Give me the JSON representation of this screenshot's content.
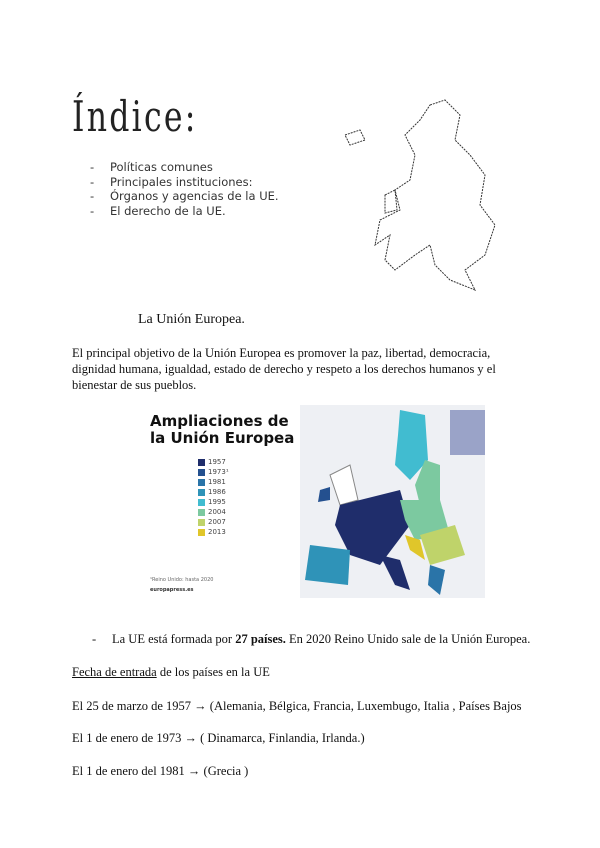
{
  "index": {
    "title": "Índice:",
    "items": [
      "Políticas comunes",
      "Principales instituciones:",
      "Órganos y agencias de la UE.",
      "El derecho de la UE."
    ]
  },
  "subtitle": "La Unión Europea.",
  "paragraph": "El principal objetivo de la Unión Europea es promover la paz, libertad, democracia, dignidad humana, igualdad, estado de derecho y respeto a los derechos humanos y el bienestar de sus pueblos.",
  "figure": {
    "title_line1": "Ampliaciones de",
    "title_line2": "la Unión Europea",
    "legend": [
      {
        "label": "1957",
        "color": "#1f2d6b"
      },
      {
        "label": "1973¹",
        "color": "#24508f"
      },
      {
        "label": "1981",
        "color": "#2a74a8"
      },
      {
        "label": "1986",
        "color": "#2f93b8"
      },
      {
        "label": "1995",
        "color": "#41bcd0"
      },
      {
        "label": "2004",
        "color": "#7cc9a0"
      },
      {
        "label": "2007",
        "color": "#bfd36a"
      },
      {
        "label": "2013",
        "color": "#e0c62a"
      }
    ],
    "footnote": "¹Reino Unido: hasta 2020",
    "source": "europapress.es"
  },
  "bullet": {
    "prefix": "La UE está formada por ",
    "bold": "27 países.",
    "suffix": "  En 2020 Reino Unido sale de la Unión Europea."
  },
  "dates": {
    "heading_underlined": "Fecha de entrada",
    "heading_rest": " de los países en la UE",
    "entries": [
      "El 25 de marzo de 1957 → (Alemania, Bélgica, Francia, Luxembugo, Italia , Países Bajos",
      "El 1 de enero de 1973 → ( Dinamarca, Finlandia, Irlanda.)",
      "El 1 de enero del 1981 → (Grecia )"
    ]
  }
}
